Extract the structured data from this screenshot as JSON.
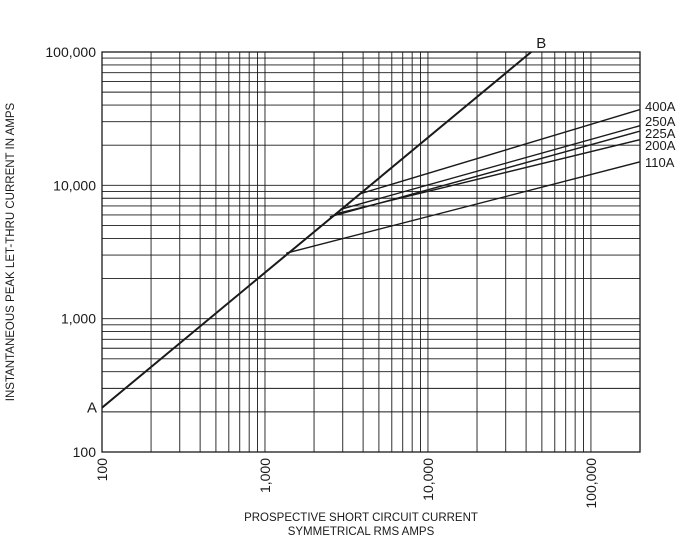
{
  "chart_data": {
    "type": "line",
    "xscale": "log",
    "yscale": "log",
    "xlim": [
      100,
      200000
    ],
    "ylim": [
      100,
      100000
    ],
    "grid": true,
    "xlabel": [
      "PROSPECTIVE SHORT CIRCUIT CURRENT",
      "SYMMETRICAL RMS AMPS"
    ],
    "ylabel": "INSTANTANEOUS PEAK LET-THRU CURRENT IN AMPS",
    "x_tick_labels": [
      "100",
      "1,000",
      "10,000",
      "100,000"
    ],
    "y_tick_labels": [
      "100",
      "1,000",
      "10,000",
      "100,000"
    ],
    "x_ticks": [
      100,
      1000,
      10000,
      100000
    ],
    "y_ticks": [
      100,
      1000,
      10000,
      100000
    ],
    "reference_line": {
      "start_label": "A",
      "end_label": "B",
      "x": [
        100,
        43000
      ],
      "y": [
        215,
        100000
      ]
    },
    "series": [
      {
        "name": "400A",
        "x": [
          3900,
          200000
        ],
        "y": [
          8700,
          37000
        ]
      },
      {
        "name": "250A",
        "x": [
          2900,
          200000
        ],
        "y": [
          6600,
          28000
        ]
      },
      {
        "name": "225A",
        "x": [
          2500,
          200000
        ],
        "y": [
          5800,
          25500
        ]
      },
      {
        "name": "200A",
        "x": [
          2700,
          200000
        ],
        "y": [
          6100,
          22000
        ]
      },
      {
        "name": "110A",
        "x": [
          1350,
          200000
        ],
        "y": [
          3100,
          15000
        ]
      }
    ]
  }
}
